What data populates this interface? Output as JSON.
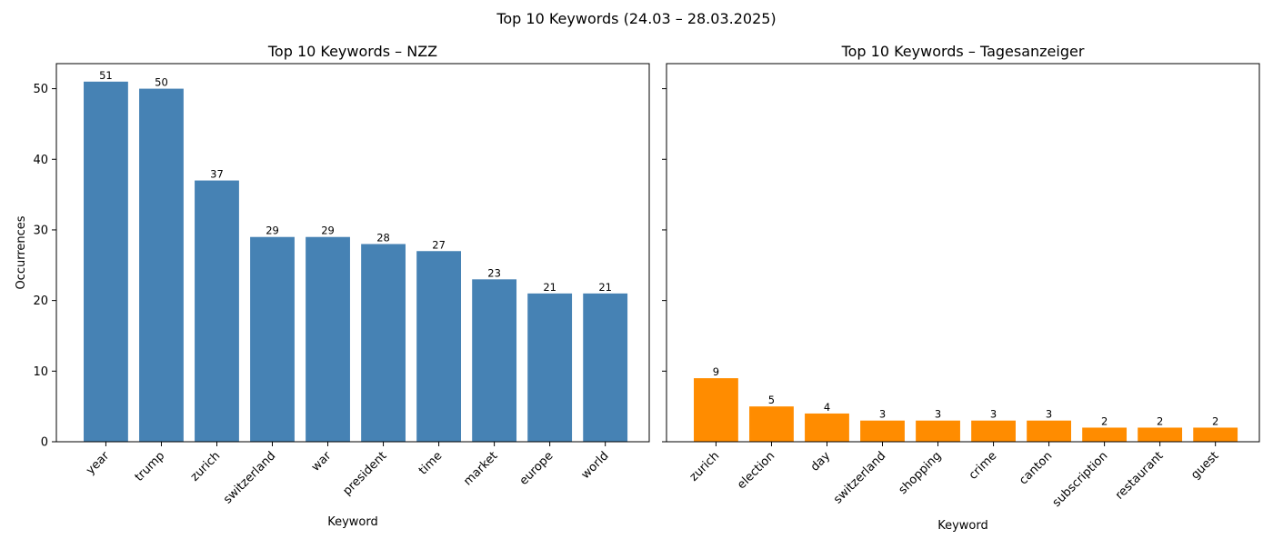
{
  "suptitle": "Top 10 Keywords (24.03 – 28.03.2025)",
  "chart_data": [
    {
      "type": "bar",
      "title": "Top 10 Keywords – NZZ",
      "xlabel": "Keyword",
      "ylabel": "Occurrences",
      "categories": [
        "year",
        "trump",
        "zurich",
        "switzerland",
        "war",
        "president",
        "time",
        "market",
        "europe",
        "world"
      ],
      "values": [
        51,
        50,
        37,
        29,
        29,
        28,
        27,
        23,
        21,
        21
      ],
      "color": "#4682b4",
      "ylim": [
        0,
        53.55
      ],
      "yticks": [
        0,
        10,
        20,
        30,
        40,
        50
      ],
      "show_ytick_labels": true,
      "grid": false,
      "legend": "none"
    },
    {
      "type": "bar",
      "title": "Top 10 Keywords – Tagesanzeiger",
      "xlabel": "Keyword",
      "ylabel": "",
      "categories": [
        "zurich",
        "election",
        "day",
        "switzerland",
        "shopping",
        "crime",
        "canton",
        "subscription",
        "restaurant",
        "guest"
      ],
      "values": [
        9,
        5,
        4,
        3,
        3,
        3,
        3,
        2,
        2,
        2
      ],
      "color": "#ff8c00",
      "ylim": [
        0,
        53.55
      ],
      "yticks": [
        0,
        10,
        20,
        30,
        40,
        50
      ],
      "show_ytick_labels": false,
      "grid": false,
      "legend": "none"
    }
  ]
}
